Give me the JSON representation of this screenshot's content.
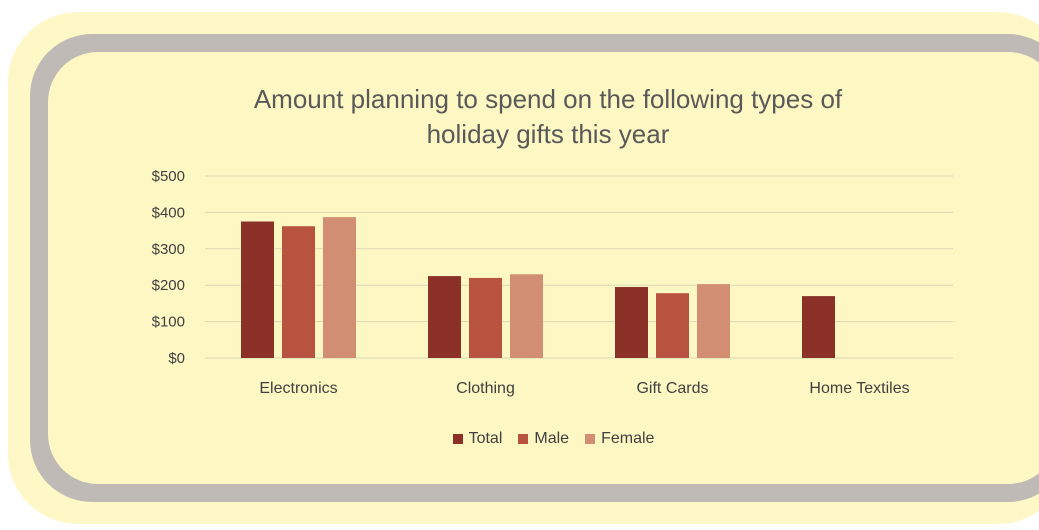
{
  "chart_data": {
    "type": "bar",
    "title": "Amount planning to spend on the following types of holiday gifts this year",
    "title_lines": [
      "Amount planning to spend on the following types of",
      "holiday gifts this year"
    ],
    "categories": [
      "Electronics",
      "Clothing",
      "Gift Cards",
      "Home Textiles"
    ],
    "series": [
      {
        "name": "Total",
        "color": "#8b3128",
        "values": [
          375,
          225,
          195,
          170
        ]
      },
      {
        "name": "Male",
        "color": "#b8533f",
        "values": [
          362,
          220,
          178,
          null
        ]
      },
      {
        "name": "Female",
        "color": "#d28e72",
        "values": [
          387,
          230,
          203,
          null
        ]
      }
    ],
    "ylim": [
      0,
      500
    ],
    "y_ticks": [
      0,
      100,
      200,
      300,
      400,
      500
    ],
    "y_tick_labels": [
      "$0",
      "$100",
      "$200",
      "$300",
      "$400",
      "$500"
    ],
    "xlabel": "",
    "ylabel": "",
    "grid": true,
    "legend_position": "bottom"
  }
}
